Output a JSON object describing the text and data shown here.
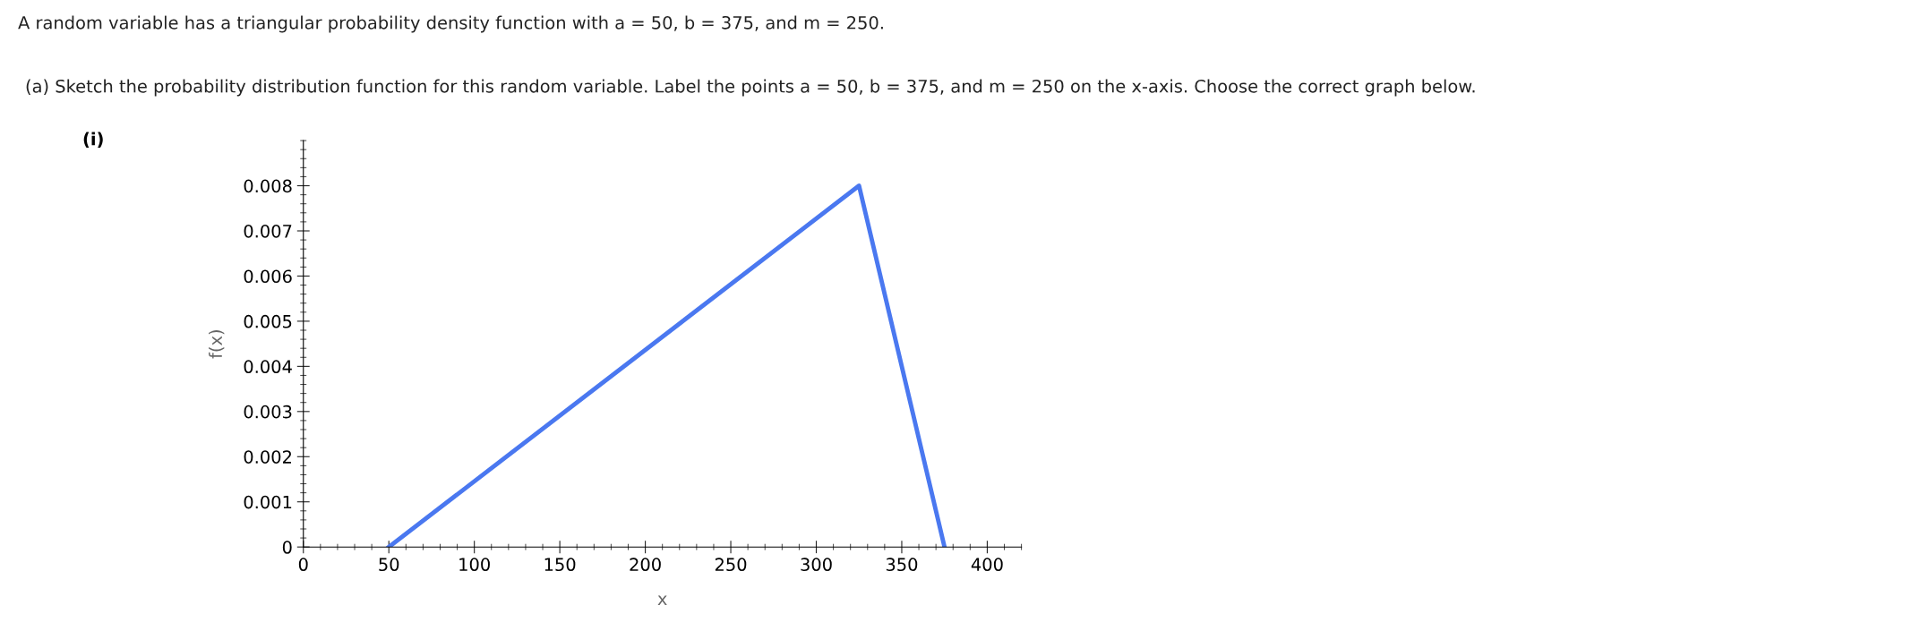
{
  "chart_data": {
    "type": "line",
    "title": "A random variable has a triangular probability density function with a = 50, b = 375, and m = 250.",
    "subtitle": "(a) Sketch the probability distribution function for this random variable. Label the points a = 50, b = 375, and m = 250 on the x-axis. Choose the correct graph below.",
    "annotations": [
      "(i)"
    ],
    "xlabel": "x",
    "ylabel": "f(x)",
    "series": [
      {
        "color": "#4a78f0",
        "x": [
          50,
          325,
          375
        ],
        "values": [
          0,
          0.008,
          0
        ]
      }
    ],
    "xlim": [
      0,
      420
    ],
    "ylim": [
      0,
      0.009
    ],
    "xticks": [
      0,
      50,
      100,
      150,
      200,
      250,
      300,
      350,
      400
    ],
    "yticks": [
      0,
      0.001,
      0.002,
      0.003,
      0.004,
      0.005,
      0.006,
      0.007,
      0.008
    ],
    "grid": false,
    "legend": false,
    "marker": "none",
    "line_style": "solid"
  }
}
